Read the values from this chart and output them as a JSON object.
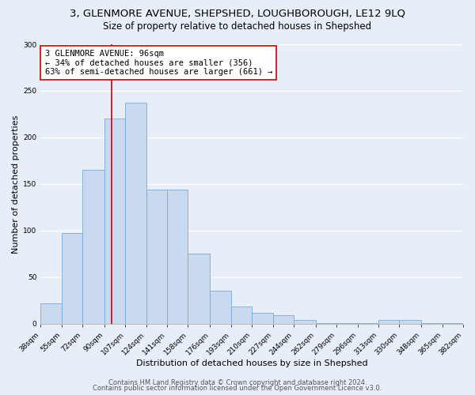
{
  "title": "3, GLENMORE AVENUE, SHEPSHED, LOUGHBOROUGH, LE12 9LQ",
  "subtitle": "Size of property relative to detached houses in Shepshed",
  "xlabel": "Distribution of detached houses by size in Shepshed",
  "ylabel": "Number of detached properties",
  "bar_color": "#c8d9f0",
  "bar_edge_color": "#7aaad4",
  "background_color": "#e8eef7",
  "grid_color": "#ffffff",
  "vline_x": 96,
  "vline_color": "#cc0000",
  "annotation_title": "3 GLENMORE AVENUE: 96sqm",
  "annotation_line1": "← 34% of detached houses are smaller (356)",
  "annotation_line2": "63% of semi-detached houses are larger (661) →",
  "annotation_box_color": "#ffffff",
  "annotation_box_edge": "#cc0000",
  "bins": [
    38,
    55,
    72,
    90,
    107,
    124,
    141,
    158,
    176,
    193,
    210,
    227,
    244,
    262,
    279,
    296,
    313,
    330,
    348,
    365,
    382
  ],
  "counts": [
    22,
    97,
    165,
    220,
    237,
    144,
    144,
    75,
    35,
    18,
    12,
    9,
    4,
    1,
    1,
    1,
    4,
    4,
    1,
    1
  ],
  "ylim": [
    0,
    300
  ],
  "yticks": [
    0,
    50,
    100,
    150,
    200,
    250,
    300
  ],
  "footer1": "Contains HM Land Registry data © Crown copyright and database right 2024.",
  "footer2": "Contains public sector information licensed under the Open Government Licence v3.0.",
  "title_fontsize": 9.5,
  "subtitle_fontsize": 8.5,
  "axis_label_fontsize": 8,
  "tick_fontsize": 6.5,
  "footer_fontsize": 6,
  "annot_fontsize": 7.5
}
